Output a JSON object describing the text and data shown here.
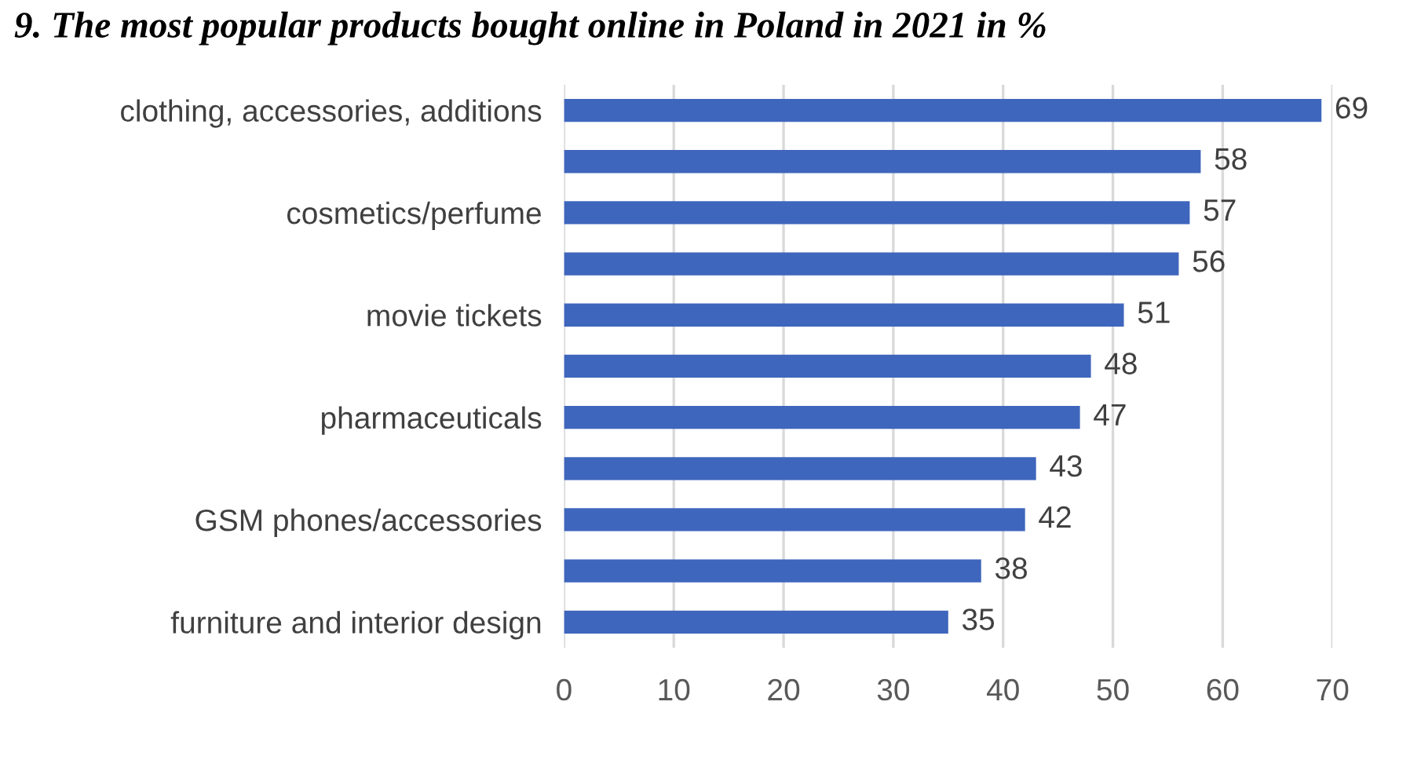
{
  "chart_data": {
    "type": "bar",
    "orientation": "horizontal",
    "title": "9. The most popular products bought online in Poland in 2021 in %",
    "categories": [
      "clothing, accessories, additions",
      null,
      "cosmetics/perfume",
      null,
      "movie tickets",
      null,
      "pharmaceuticals",
      null,
      "GSM phones/accessories",
      null,
      "furniture and interior design"
    ],
    "values": [
      69,
      58,
      57,
      56,
      51,
      48,
      47,
      43,
      42,
      38,
      35
    ],
    "color": "#3f66bd",
    "xlim": [
      0,
      70
    ],
    "xticks": [
      0,
      10,
      20,
      30,
      40,
      50,
      60,
      70
    ],
    "grid": "x",
    "data_labels": true,
    "legend": false
  }
}
